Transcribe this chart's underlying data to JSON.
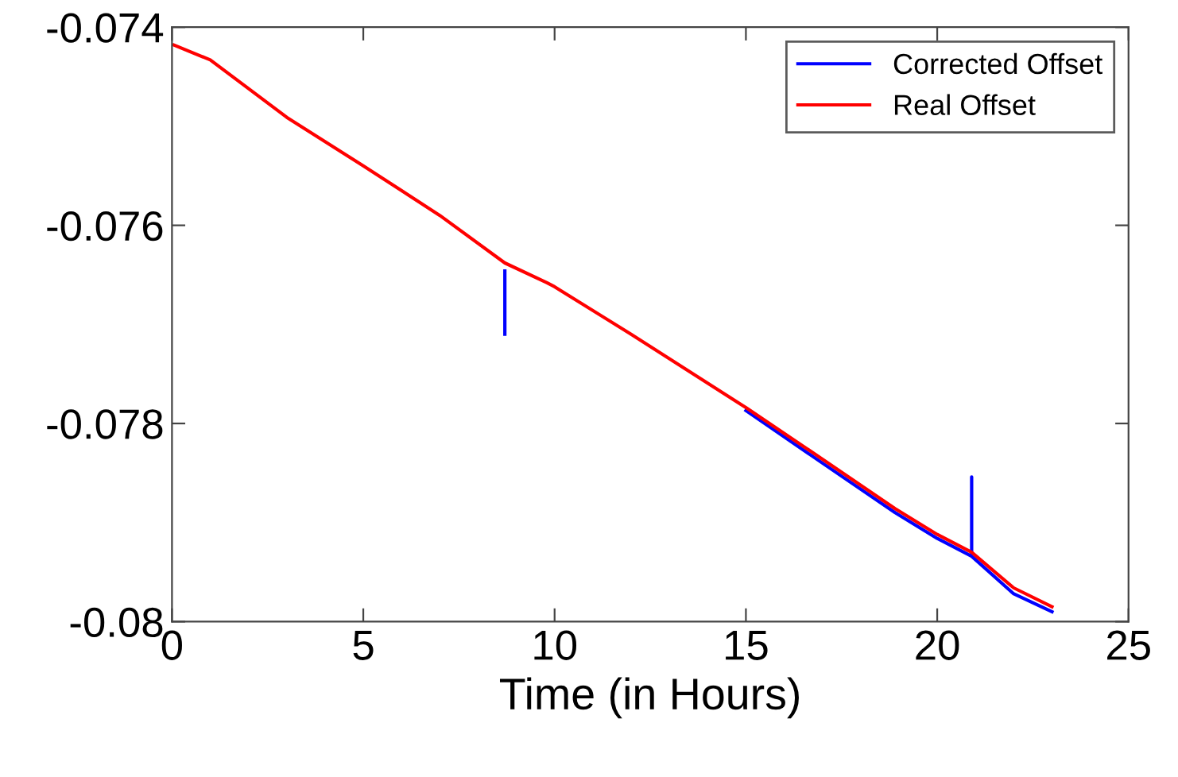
{
  "chart_data": {
    "type": "line",
    "xlabel": "Time (in Hours)",
    "xlim": [
      0,
      25
    ],
    "xticks": [
      0,
      5,
      10,
      15,
      20,
      25
    ],
    "ylim": [
      -0.08,
      -0.074
    ],
    "yticks": [
      -0.08,
      -0.078,
      -0.076,
      -0.074
    ],
    "legend": "top right",
    "grid": false,
    "series": [
      {
        "name": "Corrected Offset",
        "color": "#0000ff",
        "x": [
          8.7,
          8.7,
          12,
          15,
          17,
          18.9,
          20,
          20.9,
          20.9,
          20.9,
          22,
          23
        ],
        "values": [
          -0.07646,
          -0.0771,
          null,
          -0.07787,
          -0.0784,
          -0.0789,
          -0.07916,
          -0.07934,
          -0.07854,
          -0.07934,
          -0.07972,
          -0.0799
        ]
      },
      {
        "name": "Real Offset",
        "color": "#ff0000",
        "x": [
          0.05,
          1,
          3,
          5,
          7,
          8.7,
          9.8,
          10,
          12,
          15,
          17,
          18.9,
          20,
          20.9,
          22,
          23
        ],
        "values": [
          -0.07418,
          -0.07433,
          -0.07491,
          -0.0754,
          -0.0759,
          -0.07638,
          -0.07658,
          -0.07662,
          -0.0771,
          -0.07784,
          -0.07836,
          -0.07886,
          -0.07912,
          -0.0793,
          -0.07966,
          -0.07985
        ]
      }
    ]
  }
}
